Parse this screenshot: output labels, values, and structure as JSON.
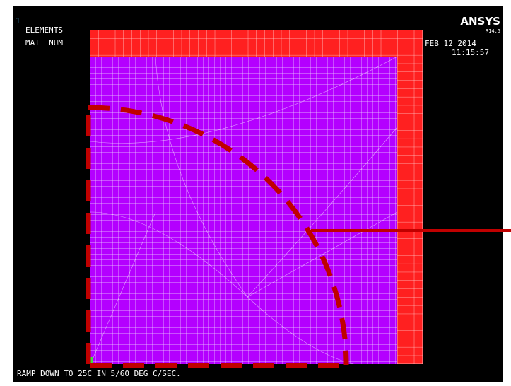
{
  "window": {
    "number": "1",
    "plot_type": "ELEMENTS",
    "label_mode": "MAT  NUM",
    "product": "ANSYS",
    "version": "R14.5",
    "date": "FEB 12 2014",
    "time": "11:15:57",
    "load_step_title": "RAMP DOWN TO 25C IN 5/60 DEG C/SEC."
  }
}
